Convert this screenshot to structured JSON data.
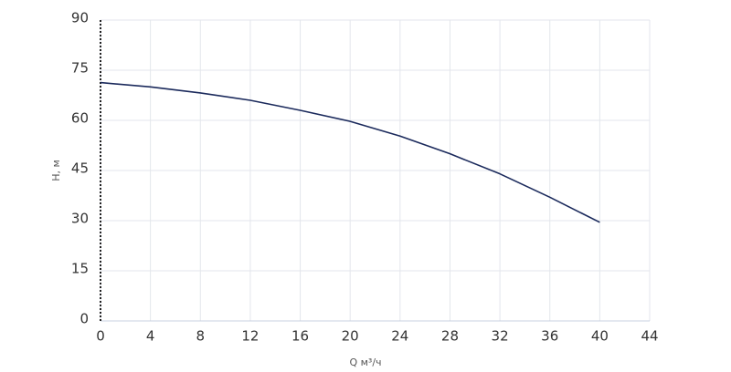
{
  "chart_data": {
    "type": "line",
    "xlabel": "Q м³/ч",
    "ylabel": "H, м",
    "series": [
      {
        "name": "H",
        "color": "#1b2a5c",
        "x": [
          0,
          4,
          8,
          12,
          16,
          20,
          24,
          28,
          32,
          36,
          40
        ],
        "values": [
          71.3,
          70,
          68.2,
          66,
          63,
          59.7,
          55.3,
          50,
          44,
          37,
          29.5
        ]
      }
    ],
    "xlim": [
      0,
      44
    ],
    "xticks": [
      0,
      4,
      8,
      12,
      16,
      20,
      24,
      28,
      32,
      36,
      40,
      44
    ],
    "ylim": [
      0,
      90
    ],
    "yticks": [
      0,
      15,
      30,
      45,
      60,
      75,
      90
    ],
    "grid": true
  }
}
